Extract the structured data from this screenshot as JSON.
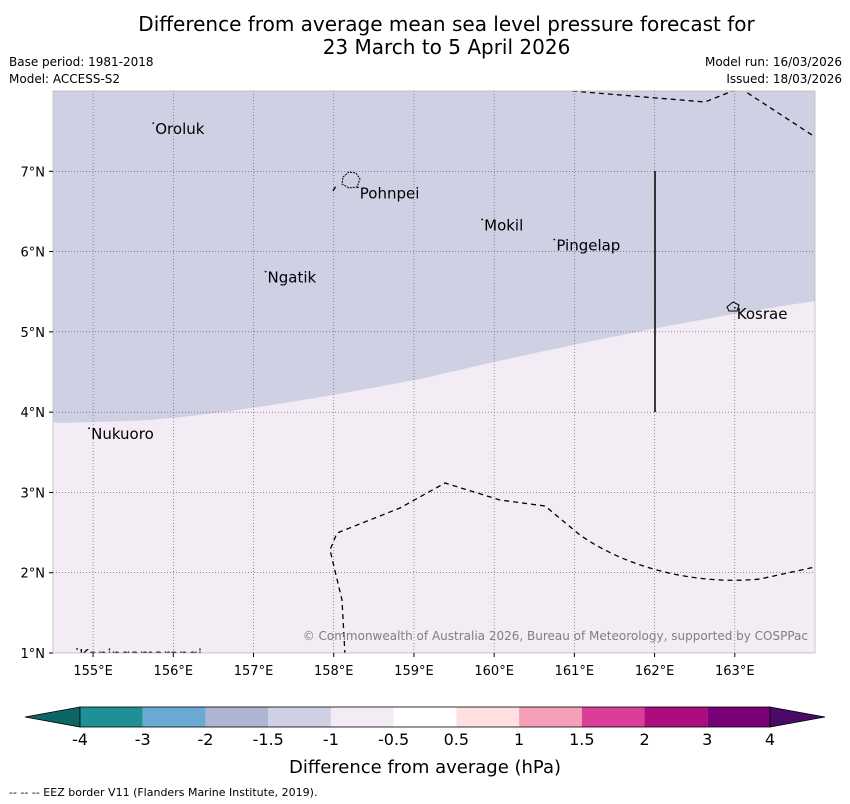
{
  "title": {
    "line1": "Difference from average mean sea level pressure forecast for",
    "line2": "23 March to 5 April 2026"
  },
  "meta": {
    "base_period": "Base period: 1981-2018",
    "model": "Model: ACCESS-S2",
    "model_run": "Model run: 16/03/2026",
    "issued": "Issued: 18/03/2026"
  },
  "map": {
    "lon_range": [
      154.5,
      164.0
    ],
    "lat_range": [
      1.0,
      8.0
    ],
    "lon_ticks": [
      155,
      156,
      157,
      158,
      159,
      160,
      161,
      162,
      163
    ],
    "lon_tick_labels": [
      "155°E",
      "156°E",
      "157°E",
      "158°E",
      "159°E",
      "160°E",
      "161°E",
      "162°E",
      "163°E"
    ],
    "lat_ticks": [
      1,
      2,
      3,
      4,
      5,
      6,
      7
    ],
    "lat_tick_labels": [
      "1°N",
      "2°N",
      "3°N",
      "4°N",
      "5°N",
      "6°N",
      "7°N"
    ],
    "fill_colors": {
      "minus_1_5_to_minus_1": "#cfd0e4",
      "minus_1_to_minus_0_5": "#f3ecf5"
    },
    "places": [
      {
        "name": "Oroluk",
        "lon": 155.75,
        "lat": 7.6
      },
      {
        "name": "Pohnpei",
        "lon": 158.3,
        "lat": 6.8
      },
      {
        "name": "Mokil",
        "lon": 159.85,
        "lat": 6.4
      },
      {
        "name": "Pingelap",
        "lon": 160.75,
        "lat": 6.15
      },
      {
        "name": "Ngatik",
        "lon": 157.15,
        "lat": 5.75
      },
      {
        "name": "Kosrae",
        "lon": 163.0,
        "lat": 5.3
      },
      {
        "name": "Nukuoro",
        "lon": 154.95,
        "lat": 3.8
      },
      {
        "name": "Kapingamarangi",
        "lon": 154.8,
        "lat": 1.05
      }
    ],
    "copyright": "© Commonwealth of Australia 2026, Bureau of Meteorology, supported by COSPPac"
  },
  "colorbar": {
    "label": "Difference from average (hPa)",
    "boundaries": [
      "-4",
      "-3",
      "-2",
      "-1.5",
      "-1",
      "-0.5",
      "0.5",
      "1",
      "1.5",
      "2",
      "3",
      "4"
    ],
    "colors": [
      "#1f9196",
      "#69aad2",
      "#aeb4d2",
      "#cfd0e4",
      "#f3ecf5",
      "#ffffff",
      "#fde0df",
      "#f5a0b9",
      "#db3d9a",
      "#ac0d7e",
      "#780177"
    ],
    "under_color": "#0b6665",
    "over_color": "#490b67"
  },
  "footer": {
    "legend": "--  --  -- EEZ border V11 (Flanders Marine Institute, 2019)."
  }
}
